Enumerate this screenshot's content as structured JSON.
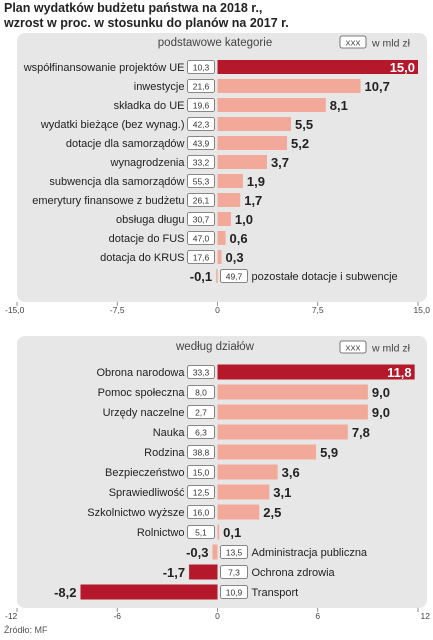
{
  "title_lines": [
    "Plan wydatków budżetu państwa na 2018 r.,",
    "wzrost w proc. w stosunku do planów na 2017 r."
  ],
  "source": "Źródło: MF",
  "colors": {
    "highlight": "#b5182b",
    "bar": "#f2a99a",
    "panel": "#e7e7e7",
    "box": "#ffffff",
    "text": "#222222"
  },
  "chart_data": [
    {
      "type": "bar",
      "orientation": "horizontal",
      "title": "podstawowe kategorie",
      "legend": {
        "key": "XXX",
        "label": "w mld zł"
      },
      "xlim": [
        -15,
        15
      ],
      "xticks": [
        "-15,0",
        "-7,5",
        "0",
        "7,5",
        "15,0"
      ],
      "tick_values": [
        -15,
        -7.5,
        0,
        7.5,
        15
      ],
      "categories": [
        "współfinansowanie projektów UE",
        "inwestycje",
        "składka do UE",
        "wydatki bieżące (bez wynag.)",
        "dotacje dla samorządów",
        "wynagrodzenia",
        "subwencja dla samorządów",
        "emerytury finansowe z budżetu",
        "obsługa długu",
        "dotacje do FUS",
        "dotacja do KRUS",
        "pozostałe dotacje i subwencje"
      ],
      "values": [
        15.0,
        10.7,
        8.1,
        5.5,
        5.2,
        3.7,
        1.9,
        1.7,
        1.0,
        0.6,
        0.3,
        -0.1
      ],
      "value_labels": [
        "15,0",
        "10,7",
        "8,1",
        "5,5",
        "5,2",
        "3,7",
        "1,9",
        "1,7",
        "1,0",
        "0,6",
        "0,3",
        "-0,1"
      ],
      "amounts_bn_pln": [
        "10,3",
        "21,6",
        "19,6",
        "42,3",
        "43,9",
        "33,2",
        "55,3",
        "26,1",
        "30,7",
        "47,0",
        "17,6",
        "49,7"
      ]
    },
    {
      "type": "bar",
      "orientation": "horizontal",
      "title": "według działów",
      "legend": {
        "key": "XXX",
        "label": "w mld zł"
      },
      "xlim": [
        -12,
        12
      ],
      "xticks": [
        "-12",
        "-6",
        "0",
        "6",
        "12"
      ],
      "tick_values": [
        -12,
        -6,
        0,
        6,
        12
      ],
      "categories": [
        "Obrona narodowa",
        "Pomoc społeczna",
        "Urzędy naczelne",
        "Nauka",
        "Rodzina",
        "Bezpieczeństwo",
        "Sprawiedliwość",
        "Szkolnictwo wyższe",
        "Rolnictwo",
        "Administracja publiczna",
        "Ochrona zdrowia",
        "Transport"
      ],
      "values": [
        11.8,
        9.0,
        9.0,
        7.8,
        5.9,
        3.6,
        3.1,
        2.5,
        0.1,
        -0.3,
        -1.7,
        -8.2
      ],
      "value_labels": [
        "11,8",
        "9,0",
        "9,0",
        "7,8",
        "5,9",
        "3,6",
        "3,1",
        "2,5",
        "0,1",
        "-0,3",
        "-1,7",
        "-8,2"
      ],
      "amounts_bn_pln": [
        "33,3",
        "8,0",
        "2,7",
        "6,3",
        "38,8",
        "15,0",
        "12,5",
        "16,0",
        "5,1",
        "13,5",
        "7,3",
        "10,9"
      ]
    }
  ]
}
